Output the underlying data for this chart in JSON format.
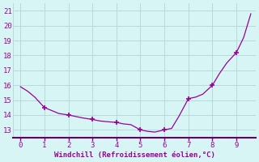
{
  "x": [
    0,
    0.3,
    0.6,
    1.0,
    1.3,
    1.6,
    2.0,
    2.3,
    2.6,
    3.0,
    3.3,
    3.6,
    4.0,
    4.3,
    4.6,
    5.0,
    5.3,
    5.6,
    6.0,
    6.3,
    6.6,
    7.0,
    7.3,
    7.6,
    8.0,
    8.3,
    8.6,
    9.0,
    9.3,
    9.6
  ],
  "y": [
    15.9,
    15.6,
    15.2,
    14.5,
    14.3,
    14.1,
    14.0,
    13.9,
    13.8,
    13.7,
    13.6,
    13.55,
    13.5,
    13.4,
    13.35,
    13.0,
    12.9,
    12.85,
    13.0,
    13.1,
    13.9,
    15.1,
    15.2,
    15.4,
    16.0,
    16.8,
    17.5,
    18.2,
    19.2,
    20.8
  ],
  "markers_x": [
    1,
    2,
    3,
    4,
    5,
    6,
    7,
    8,
    9
  ],
  "markers_y": [
    14.5,
    14.0,
    13.7,
    13.5,
    13.0,
    13.0,
    15.1,
    16.0,
    18.2
  ],
  "line_color": "#990099",
  "marker_color": "#990099",
  "bg_color": "#d8f5f5",
  "grid_color": "#b8dada",
  "text_color": "#990099",
  "axis_color": "#660066",
  "xlabel": "Windchill (Refroidissement éolien,°C)",
  "ylim": [
    12.5,
    21.5
  ],
  "xlim": [
    -0.3,
    9.8
  ],
  "yticks": [
    13,
    14,
    15,
    16,
    17,
    18,
    19,
    20,
    21
  ],
  "xticks": [
    0,
    1,
    2,
    3,
    4,
    5,
    6,
    7,
    8,
    9
  ]
}
